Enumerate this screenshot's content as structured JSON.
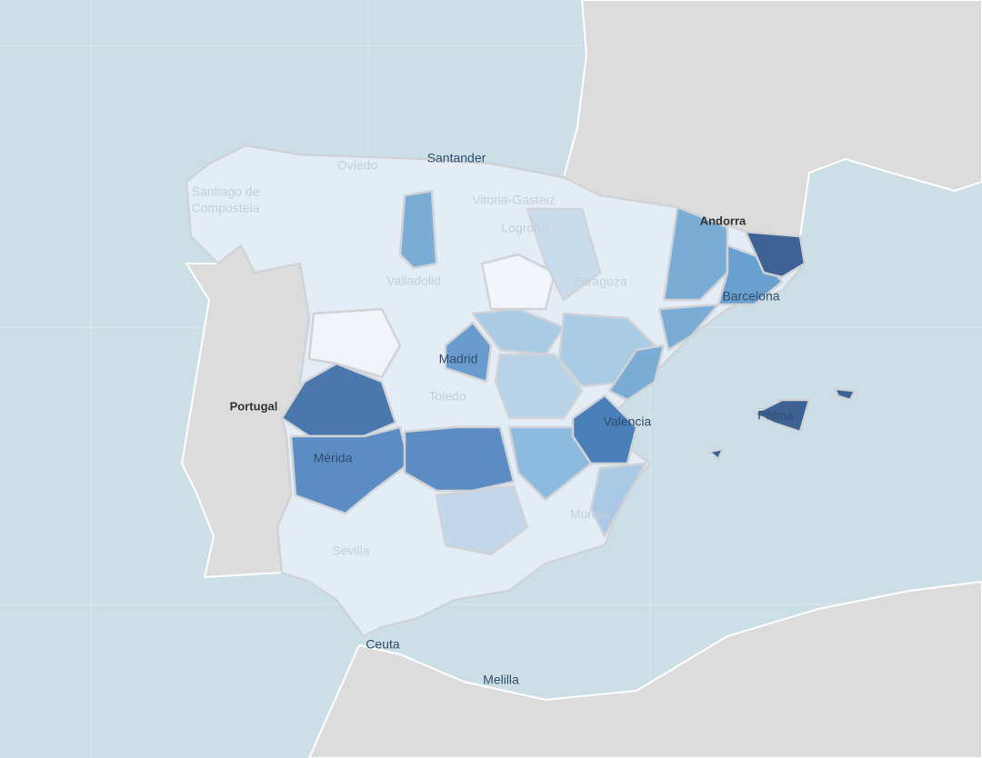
{
  "labels": [
    {
      "text": "Oviedo"
    },
    {
      "text": "Santander"
    },
    {
      "lines": [
        "Santiago de",
        "Compostela"
      ]
    },
    {
      "text": "Vitoria-Gasteiz"
    },
    {
      "text": "Logroño"
    },
    {
      "text": "Andorra"
    },
    {
      "text": "Zaragoza"
    },
    {
      "text": "Valladolid"
    },
    {
      "text": "Barcelona"
    },
    {
      "text": "Madrid"
    },
    {
      "text": "Portugal"
    },
    {
      "text": "Toledo"
    },
    {
      "text": "Valencia"
    },
    {
      "text": "Palma"
    },
    {
      "text": "Mérida"
    },
    {
      "text": "Murcia"
    },
    {
      "text": "Sevilla"
    },
    {
      "text": "Ceuta"
    },
    {
      "text": "Melilla"
    }
  ]
}
